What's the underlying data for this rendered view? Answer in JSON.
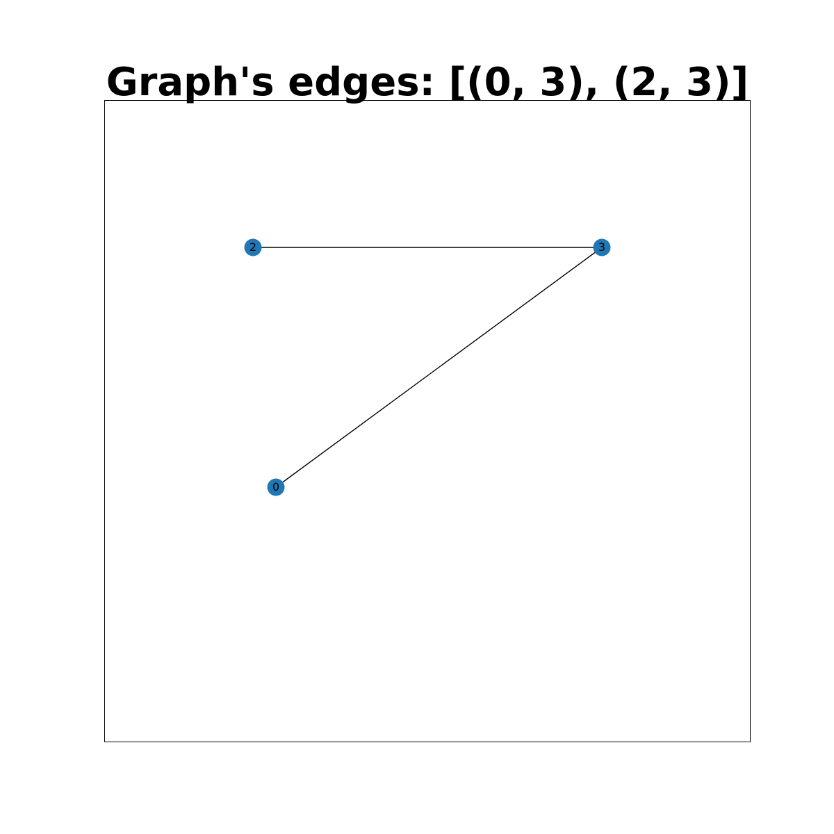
{
  "figure": {
    "title": "Graph's edges: [(0, 3), (2, 3)]"
  },
  "graph": {
    "node_color": "#1f77b4",
    "edge_color": "#000000",
    "nodes": [
      {
        "id": "0",
        "label": "0"
      },
      {
        "id": "2",
        "label": "2"
      },
      {
        "id": "3",
        "label": "3"
      }
    ],
    "edges": [
      {
        "source": "0",
        "target": "3"
      },
      {
        "source": "2",
        "target": "3"
      }
    ]
  }
}
